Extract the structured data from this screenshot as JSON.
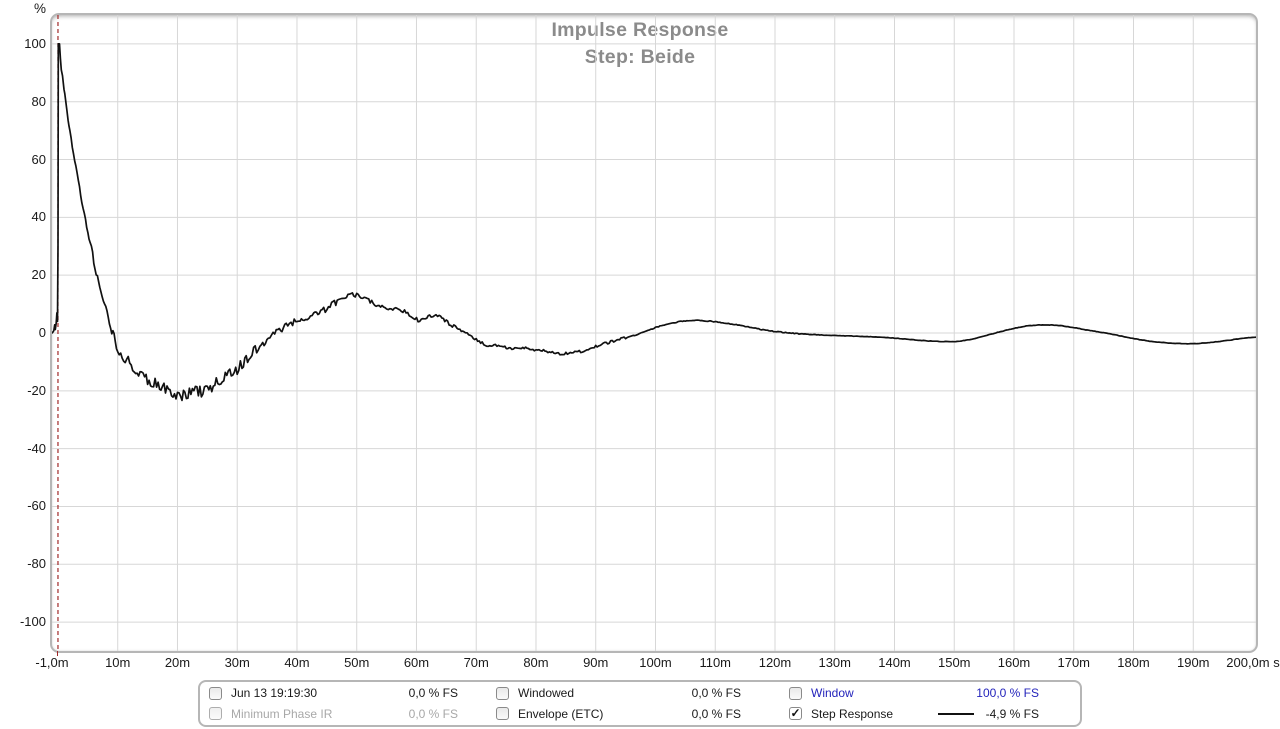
{
  "colors": {
    "curve": "#111111",
    "time_zero_marker": "#a02828",
    "grid": "#d7d7d7",
    "legend_blue": "#2424bb",
    "disabled_gray": "#a8a8a8",
    "title_gray": "#8b8b8b"
  },
  "chart_data": {
    "type": "line",
    "title": "Impulse Response",
    "subtitle": "Step: Beide",
    "ylabel": "%",
    "x_axis_suffix": "s",
    "xlim": [
      -1,
      200.5
    ],
    "ylim": [
      -110,
      110
    ],
    "grid": true,
    "legend_position": "bottom",
    "y_ticks": [
      100,
      80,
      60,
      40,
      20,
      0,
      -20,
      -40,
      -60,
      -80,
      -100
    ],
    "x_ticks": [
      {
        "t": -1,
        "label": "-1,0m"
      },
      {
        "t": 10,
        "label": "10m"
      },
      {
        "t": 20,
        "label": "20m"
      },
      {
        "t": 30,
        "label": "30m"
      },
      {
        "t": 40,
        "label": "40m"
      },
      {
        "t": 50,
        "label": "50m"
      },
      {
        "t": 60,
        "label": "60m"
      },
      {
        "t": 70,
        "label": "70m"
      },
      {
        "t": 80,
        "label": "80m"
      },
      {
        "t": 90,
        "label": "90m"
      },
      {
        "t": 100,
        "label": "100m"
      },
      {
        "t": 110,
        "label": "110m"
      },
      {
        "t": 120,
        "label": "120m"
      },
      {
        "t": 130,
        "label": "130m"
      },
      {
        "t": 140,
        "label": "140m"
      },
      {
        "t": 150,
        "label": "150m"
      },
      {
        "t": 160,
        "label": "160m"
      },
      {
        "t": 170,
        "label": "170m"
      },
      {
        "t": 180,
        "label": "180m"
      },
      {
        "t": 190,
        "label": "190m"
      },
      {
        "t": 200,
        "label": "200,0m s"
      }
    ],
    "time_zero_marker": {
      "t": 0,
      "style": "dashed",
      "color": "#a02828"
    },
    "series": [
      {
        "name": "Step Response",
        "unit": "% FS",
        "color": "#111111",
        "keypoints": [
          [
            -1,
            0
          ],
          [
            -0.85,
            0.3
          ],
          [
            -0.7,
            0.8
          ],
          [
            -0.55,
            2.8
          ],
          [
            -0.45,
            1.2
          ],
          [
            -0.3,
            3.5
          ],
          [
            -0.18,
            7
          ],
          [
            -0.08,
            4
          ],
          [
            0,
            30
          ],
          [
            0.05,
            100
          ],
          [
            0.25,
            100
          ],
          [
            0.4,
            95
          ],
          [
            0.55,
            91
          ],
          [
            0.75,
            89
          ],
          [
            1,
            85
          ],
          [
            1.3,
            80
          ],
          [
            1.7,
            74
          ],
          [
            2,
            70
          ],
          [
            2.4,
            65
          ],
          [
            2.8,
            60
          ],
          [
            3.2,
            55
          ],
          [
            3.6,
            50
          ],
          [
            4,
            45
          ],
          [
            4.4,
            41
          ],
          [
            4.8,
            37
          ],
          [
            5.2,
            33
          ],
          [
            5.6,
            29
          ],
          [
            6,
            25
          ],
          [
            6.4,
            21
          ],
          [
            6.8,
            18
          ],
          [
            7.2,
            14
          ],
          [
            7.6,
            11
          ],
          [
            8,
            8
          ],
          [
            8.4,
            5
          ],
          [
            8.8,
            2
          ],
          [
            9.2,
            -1
          ],
          [
            9.6,
            -3
          ],
          [
            10,
            -5
          ],
          [
            10.5,
            -7
          ],
          [
            11,
            -8
          ],
          [
            11.5,
            -9
          ],
          [
            12,
            -11
          ],
          [
            12.5,
            -12
          ],
          [
            13,
            -13
          ],
          [
            13.5,
            -14
          ],
          [
            14,
            -15
          ],
          [
            15,
            -16.5
          ],
          [
            16,
            -17.5
          ],
          [
            17,
            -18.5
          ],
          [
            18,
            -19.5
          ],
          [
            19,
            -20.5
          ],
          [
            20,
            -21
          ],
          [
            21,
            -21.5
          ],
          [
            22,
            -21
          ],
          [
            23,
            -20
          ],
          [
            24,
            -20.5
          ],
          [
            25,
            -19
          ],
          [
            26,
            -18
          ],
          [
            27,
            -17
          ],
          [
            28,
            -15.5
          ],
          [
            29,
            -14
          ],
          [
            30,
            -13
          ],
          [
            30.8,
            -11
          ],
          [
            31.5,
            -9.5
          ],
          [
            32.2,
            -8
          ],
          [
            33,
            -6.5
          ],
          [
            33.8,
            -5
          ],
          [
            34.5,
            -3.5
          ],
          [
            35.2,
            -2
          ],
          [
            36,
            -0.5
          ],
          [
            36.8,
            0.5
          ],
          [
            37.5,
            1.5
          ],
          [
            38.2,
            2.5
          ],
          [
            39,
            3.5
          ],
          [
            39.8,
            4
          ],
          [
            40.5,
            4.2
          ],
          [
            41.2,
            4
          ],
          [
            42,
            5
          ],
          [
            42.8,
            6
          ],
          [
            43.5,
            7
          ],
          [
            44.2,
            7.8
          ],
          [
            45,
            8.5
          ],
          [
            45.8,
            9.5
          ],
          [
            46.5,
            10.5
          ],
          [
            47.2,
            11
          ],
          [
            48,
            12
          ],
          [
            48.8,
            12.8
          ],
          [
            49.5,
            13.3
          ],
          [
            50,
            13.5
          ],
          [
            50.5,
            13
          ],
          [
            51,
            12.5
          ],
          [
            52,
            11.5
          ],
          [
            53,
            10.2
          ],
          [
            54,
            9
          ],
          [
            55,
            8
          ],
          [
            55.8,
            8.3
          ],
          [
            56.5,
            9
          ],
          [
            57.2,
            8.5
          ],
          [
            58,
            7.5
          ],
          [
            58.8,
            6.3
          ],
          [
            59.5,
            5.2
          ],
          [
            60,
            4.6
          ],
          [
            60.8,
            4.4
          ],
          [
            61.5,
            5
          ],
          [
            62.2,
            5.6
          ],
          [
            63,
            5.8
          ],
          [
            63.8,
            5.4
          ],
          [
            64.5,
            4.6
          ],
          [
            65.2,
            3.6
          ],
          [
            66,
            2.6
          ],
          [
            66.8,
            1.6
          ],
          [
            67.5,
            0.8
          ],
          [
            68.2,
            0
          ],
          [
            69,
            -1
          ],
          [
            70,
            -2.4
          ],
          [
            71,
            -3.4
          ],
          [
            71.8,
            -4.2
          ],
          [
            72.5,
            -4.5
          ],
          [
            73.2,
            -4.1
          ],
          [
            74,
            -4.4
          ],
          [
            74.8,
            -4.9
          ],
          [
            75.5,
            -5.3
          ],
          [
            76.2,
            -5.5
          ],
          [
            77,
            -5.2
          ],
          [
            77.8,
            -5.4
          ],
          [
            78.5,
            -5.2
          ],
          [
            79.2,
            -5.5
          ],
          [
            80,
            -5.9
          ],
          [
            81,
            -6.1
          ],
          [
            82,
            -6.4
          ],
          [
            83,
            -6.8
          ],
          [
            84,
            -7.2
          ],
          [
            85,
            -7.1
          ],
          [
            86,
            -6.9
          ],
          [
            87,
            -6.6
          ],
          [
            88,
            -6.1
          ],
          [
            89,
            -5.5
          ],
          [
            90,
            -4.7
          ],
          [
            91,
            -4
          ],
          [
            92,
            -3.4
          ],
          [
            93,
            -2.7
          ],
          [
            94,
            -2.1
          ],
          [
            95,
            -1.6
          ],
          [
            96,
            -1.1
          ],
          [
            97,
            -0.5
          ],
          [
            98,
            0.3
          ],
          [
            99,
            1.1
          ],
          [
            100,
            1.9
          ],
          [
            101,
            2.5
          ],
          [
            102,
            3
          ],
          [
            103,
            3.5
          ],
          [
            104,
            3.9
          ],
          [
            105,
            4.2
          ],
          [
            106,
            4.4
          ],
          [
            107,
            4.4
          ],
          [
            108,
            4.3
          ],
          [
            109,
            4.1
          ],
          [
            110,
            3.9
          ],
          [
            111,
            3.6
          ],
          [
            112,
            3.3
          ],
          [
            113,
            3
          ],
          [
            114,
            2.7
          ],
          [
            115,
            2.3
          ],
          [
            116,
            1.9
          ],
          [
            117,
            1.5
          ],
          [
            118,
            1.1
          ],
          [
            119,
            0.8
          ],
          [
            120,
            0.5
          ],
          [
            121,
            0.3
          ],
          [
            122,
            0.1
          ],
          [
            123,
            -0.1
          ],
          [
            124,
            -0.3
          ],
          [
            125,
            -0.4
          ],
          [
            126,
            -0.5
          ],
          [
            127,
            -0.6
          ],
          [
            128,
            -0.7
          ],
          [
            130,
            -0.85
          ],
          [
            132,
            -1
          ],
          [
            134,
            -1.15
          ],
          [
            136,
            -1.3
          ],
          [
            138,
            -1.5
          ],
          [
            140,
            -1.75
          ],
          [
            142,
            -2.1
          ],
          [
            144,
            -2.5
          ],
          [
            146,
            -2.8
          ],
          [
            148,
            -3
          ],
          [
            150,
            -2.95
          ],
          [
            151,
            -2.8
          ],
          [
            152,
            -2.5
          ],
          [
            153,
            -2.1
          ],
          [
            154,
            -1.6
          ],
          [
            155,
            -1.1
          ],
          [
            156,
            -0.5
          ],
          [
            157,
            0.1
          ],
          [
            158,
            0.6
          ],
          [
            159,
            1.1
          ],
          [
            160,
            1.6
          ],
          [
            161,
            2
          ],
          [
            162,
            2.4
          ],
          [
            163,
            2.6
          ],
          [
            164,
            2.75
          ],
          [
            165,
            2.8
          ],
          [
            166,
            2.8
          ],
          [
            167,
            2.7
          ],
          [
            168,
            2.5
          ],
          [
            169,
            2.2
          ],
          [
            170,
            1.9
          ],
          [
            171,
            1.5
          ],
          [
            172,
            1.1
          ],
          [
            173,
            0.8
          ],
          [
            174,
            0.4
          ],
          [
            175,
            0.1
          ],
          [
            176,
            -0.3
          ],
          [
            177,
            -0.7
          ],
          [
            178,
            -1.1
          ],
          [
            179,
            -1.5
          ],
          [
            180,
            -1.9
          ],
          [
            181,
            -2.3
          ],
          [
            182,
            -2.6
          ],
          [
            183,
            -2.9
          ],
          [
            184,
            -3.1
          ],
          [
            185,
            -3.3
          ],
          [
            186,
            -3.5
          ],
          [
            187,
            -3.6
          ],
          [
            188,
            -3.65
          ],
          [
            189,
            -3.7
          ],
          [
            190,
            -3.7
          ],
          [
            191,
            -3.6
          ],
          [
            192,
            -3.45
          ],
          [
            193,
            -3.25
          ],
          [
            194,
            -3
          ],
          [
            195,
            -2.75
          ],
          [
            196,
            -2.5
          ],
          [
            197,
            -2.2
          ],
          [
            198,
            -1.95
          ],
          [
            199,
            -1.7
          ],
          [
            200,
            -1.5
          ],
          [
            200.5,
            -1.45
          ]
        ],
        "noise_regions": [
          [
            1,
            5,
            0.8
          ],
          [
            5,
            9,
            1.2
          ],
          [
            9,
            33,
            2.1
          ],
          [
            33,
            50,
            1.1
          ],
          [
            50,
            68,
            0.8
          ],
          [
            68,
            95,
            0.45
          ],
          [
            95,
            125,
            0.15
          ],
          [
            125,
            200.5,
            0.07
          ]
        ]
      }
    ]
  },
  "legend": {
    "items": [
      {
        "label": "Jun 13 19:19:30",
        "value": "0,0 % FS",
        "checked": false,
        "variant": "default",
        "swatch": false
      },
      {
        "label": "Windowed",
        "value": "0,0 % FS",
        "checked": false,
        "variant": "default",
        "swatch": false
      },
      {
        "label": "Window",
        "value": "100,0 % FS",
        "checked": false,
        "variant": "blue",
        "swatch": false
      },
      {
        "label": "Minimum Phase IR",
        "value": "0,0 % FS",
        "checked": false,
        "variant": "disabled",
        "swatch": false
      },
      {
        "label": "Envelope (ETC)",
        "value": "0,0 % FS",
        "checked": false,
        "variant": "default",
        "swatch": false
      },
      {
        "label": "Step Response",
        "value": "-4,9 % FS",
        "checked": true,
        "variant": "default",
        "swatch": true
      }
    ]
  }
}
